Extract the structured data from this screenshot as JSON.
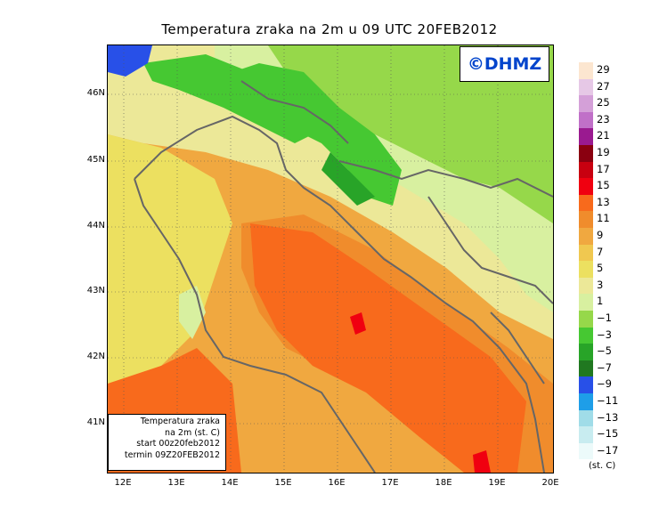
{
  "title": "Temperatura zraka na 2m u 09 UTC 20FEB2012",
  "logo": "©DHMZ",
  "info_box": {
    "line1": "Temperatura zraka",
    "line2": "na 2m (st. C)",
    "line3": "start 00z20feb2012",
    "line4": "termin 09Z20FEB2012"
  },
  "axes": {
    "lat_labels": [
      "46N",
      "45N",
      "44N",
      "43N",
      "42N",
      "41N"
    ],
    "lon_labels": [
      "12E",
      "13E",
      "14E",
      "15E",
      "16E",
      "17E",
      "18E",
      "19E",
      "20E"
    ]
  },
  "legend": {
    "units": "(st. C)",
    "labels": [
      "29",
      "27",
      "25",
      "23",
      "21",
      "19",
      "17",
      "15",
      "13",
      "11",
      "9",
      "7",
      "5",
      "3",
      "1",
      "−1",
      "−3",
      "−5",
      "−7",
      "−9",
      "−11",
      "−13",
      "−15",
      "−17"
    ],
    "colors": [
      "#fce6d0",
      "#e6c8e6",
      "#d4a0d8",
      "#c070c8",
      "#9a1a90",
      "#8a0010",
      "#c80010",
      "#f00010",
      "#f86a1c",
      "#f08c2c",
      "#f0a840",
      "#f0c850",
      "#ece060",
      "#ece898",
      "#d8f0a0",
      "#96d84a",
      "#46c832",
      "#28a428",
      "#207820",
      "#2850e8",
      "#1e9ee8",
      "#a0dce8",
      "#c8ecf0",
      "#ecfafa"
    ]
  },
  "chart_data": {
    "type": "heatmap",
    "title": "Temperatura zraka na 2m u 09 UTC 20FEB2012",
    "units": "st. C",
    "x_ticks": [
      "12E",
      "13E",
      "14E",
      "15E",
      "16E",
      "17E",
      "18E",
      "19E",
      "20E"
    ],
    "y_ticks": [
      "46N",
      "45N",
      "44N",
      "43N",
      "42N",
      "41N"
    ],
    "xlim": [
      11.7,
      20.0
    ],
    "ylim": [
      40.25,
      46.8
    ],
    "color_scale": [
      -17,
      -15,
      -13,
      -11,
      -9,
      -7,
      -5,
      -3,
      -1,
      1,
      3,
      5,
      7,
      9,
      11,
      13,
      15,
      17,
      19,
      21,
      23,
      25,
      27,
      29
    ],
    "grid": true
  }
}
